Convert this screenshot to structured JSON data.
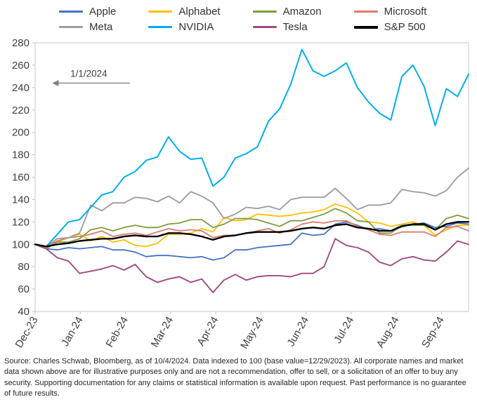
{
  "source": {
    "text": "Source: Charles Schwab, Bloomberg, as of 10/4/2024. Data indexed to 100 (base value=12/29/2023). All corporate names and market data shown above are for illustrative purposes only and are not a recommendation, offer to sell, or a solicitation of an offer to buy any security. Supporting documentation for any claims or statistical information is available upon request. Past performance is no guarantee of future results."
  },
  "chart_data": {
    "type": "line",
    "title": "",
    "xlabel": "",
    "ylabel": "",
    "grid": false,
    "legend_position": "top",
    "ylim": [
      40,
      280
    ],
    "y_tick_step": 20,
    "x_tick_labels": [
      "Dec-23",
      "Jan-24",
      "Feb-24",
      "Mar-24",
      "Apr-24",
      "May-24",
      "Jun-24",
      "Jul-24",
      "Aug-24",
      "Sep-24"
    ],
    "x_axis_months_total": 9.6,
    "x_unit": "weekly points from 12/29/2023 to 10/4/2024, indexed to 100",
    "annotation": {
      "label": "1/1/2024",
      "y_value": 244,
      "arrow_from_month": 2.1,
      "arrow_to_month": 0.38,
      "text_x_month": 0.78
    },
    "series": [
      {
        "name": "Apple",
        "color": "#4472C4",
        "width": 1.8,
        "values": [
          100,
          96,
          95,
          97,
          96,
          97,
          98,
          95,
          95,
          93,
          89,
          90,
          90,
          89,
          88,
          89,
          86,
          88,
          95,
          95,
          97,
          98,
          99,
          100,
          110,
          108,
          109,
          118,
          120,
          117,
          113,
          114,
          112,
          117,
          118,
          119,
          115,
          116,
          119,
          118
        ]
      },
      {
        "name": "Alphabet",
        "color": "#FFC000",
        "width": 1.8,
        "values": [
          100,
          97,
          102,
          106,
          109,
          103,
          107,
          102,
          104,
          99,
          98,
          101,
          109,
          109,
          110,
          114,
          111,
          124,
          121,
          122,
          127,
          126,
          125,
          126,
          128,
          129,
          131,
          136,
          133,
          128,
          120,
          119,
          116,
          118,
          120,
          117,
          108,
          113,
          117,
          117
        ]
      },
      {
        "name": "Amazon",
        "color": "#7F9A3D",
        "width": 1.8,
        "values": [
          100,
          96,
          102,
          102,
          105,
          113,
          115,
          112,
          115,
          117,
          115,
          115,
          118,
          119,
          122,
          122,
          115,
          118,
          123,
          123,
          122,
          119,
          116,
          121,
          121,
          124,
          127,
          132,
          128,
          121,
          120,
          110,
          110,
          117,
          117,
          117,
          113,
          123,
          126,
          123
        ]
      },
      {
        "name": "Microsoft",
        "color": "#DA7A6E",
        "width": 1.8,
        "values": [
          100,
          98,
          103,
          106,
          107,
          109,
          112,
          107,
          109,
          110,
          108,
          111,
          114,
          112,
          113,
          112,
          106,
          108,
          108,
          110,
          112,
          114,
          110,
          113,
          118,
          120,
          119,
          121,
          121,
          116,
          113,
          109,
          108,
          111,
          111,
          111,
          107,
          115,
          116,
          112
        ]
      },
      {
        "name": "Meta",
        "color": "#9E9E9E",
        "width": 1.9,
        "values": [
          100,
          98,
          105,
          106,
          110,
          135,
          130,
          137,
          137,
          142,
          141,
          138,
          143,
          137,
          147,
          143,
          137,
          123,
          127,
          133,
          132,
          134,
          131,
          140,
          142,
          142,
          142,
          150,
          141,
          131,
          135,
          135,
          137,
          149,
          147,
          146,
          143,
          148,
          160,
          168
        ]
      },
      {
        "name": "NVIDIA",
        "color": "#00AEEF",
        "width": 2.0,
        "values": [
          100,
          98,
          109,
          120,
          122,
          133,
          144,
          147,
          160,
          165,
          175,
          178,
          196,
          183,
          176,
          177,
          152,
          160,
          177,
          181,
          187,
          210,
          221,
          243,
          274,
          255,
          250,
          255,
          262,
          240,
          227,
          217,
          211,
          250,
          260,
          241,
          206,
          239,
          232,
          252
        ]
      },
      {
        "name": "Tesla",
        "color": "#A04A7D",
        "width": 1.9,
        "values": [
          100,
          96,
          88,
          85,
          74,
          76,
          78,
          81,
          77,
          82,
          71,
          66,
          69,
          71,
          66,
          69,
          57,
          68,
          73,
          68,
          71,
          72,
          72,
          71,
          74,
          74,
          80,
          105,
          99,
          97,
          93,
          84,
          81,
          87,
          89,
          86,
          85,
          93,
          103,
          100
        ]
      },
      {
        "name": "S&P 500",
        "color": "#000000",
        "width": 2.4,
        "values": [
          100,
          98,
          100,
          101,
          103,
          104,
          105,
          105,
          107,
          108,
          107,
          107,
          110,
          110,
          109,
          107,
          104,
          107,
          108,
          110,
          111,
          111,
          111,
          112,
          114,
          115,
          114,
          117,
          118,
          115,
          114,
          112,
          112,
          116,
          118,
          118,
          113,
          118,
          120,
          120
        ]
      }
    ]
  }
}
